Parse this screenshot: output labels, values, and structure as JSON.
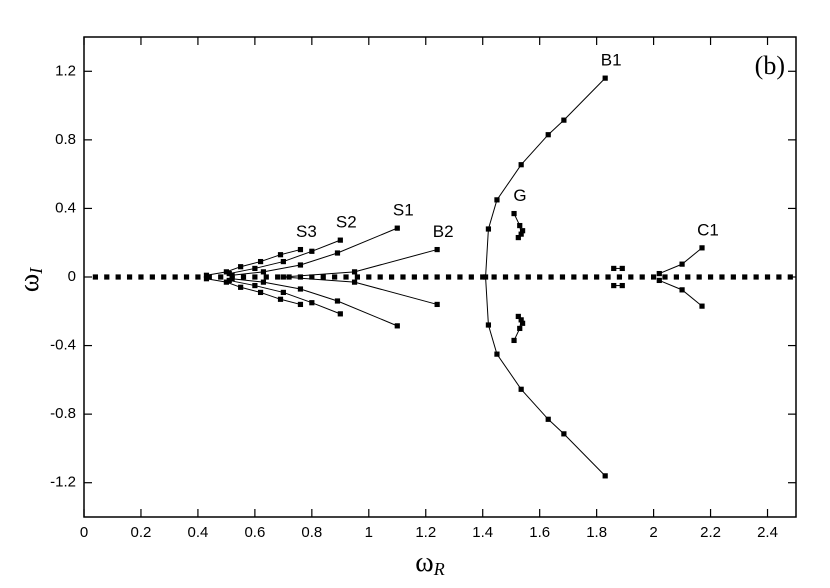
{
  "chart_data": {
    "type": "scatter",
    "panel_label": "(b)",
    "x_label": {
      "symbol": "ω",
      "subscript": "R"
    },
    "y_label": {
      "symbol": "ω",
      "subscript": "I"
    },
    "xlim": [
      0,
      2.5
    ],
    "ylim": [
      -1.4,
      1.4
    ],
    "xticks": [
      0,
      0.2,
      0.4,
      0.6,
      0.8,
      1,
      1.2,
      1.4,
      1.6,
      1.8,
      2,
      2.2,
      2.4
    ],
    "yticks": [
      -1.2,
      -0.8,
      -0.4,
      0,
      0.4,
      0.8,
      1.2
    ],
    "color": "#000000",
    "series": [
      {
        "name": "B1",
        "x": [
          1.83,
          1.685,
          1.63,
          1.535,
          1.45,
          1.42,
          1.41,
          1.42,
          1.45,
          1.535,
          1.63,
          1.685,
          1.83
        ],
        "y": [
          1.16,
          0.915,
          0.83,
          0.655,
          0.45,
          0.28,
          0,
          -0.28,
          -0.45,
          -0.655,
          -0.83,
          -0.915,
          -1.16
        ]
      },
      {
        "name": "B2",
        "x": [
          1.24,
          0.95,
          0.7,
          0.95,
          1.24
        ],
        "y": [
          0.16,
          0.03,
          0,
          -0.03,
          -0.16
        ]
      },
      {
        "name": "S1",
        "x": [
          1.1,
          0.89,
          0.76,
          0.63,
          0.52,
          null,
          0.52,
          0.63,
          0.76,
          0.89,
          1.1
        ],
        "y": [
          0.285,
          0.14,
          0.07,
          0.03,
          0.01,
          null,
          -0.01,
          -0.03,
          -0.07,
          -0.14,
          -0.285
        ]
      },
      {
        "name": "S2",
        "x": [
          0.9,
          0.8,
          0.7,
          0.6,
          0.51,
          null,
          0.51,
          0.6,
          0.7,
          0.8,
          0.9
        ],
        "y": [
          0.215,
          0.15,
          0.09,
          0.05,
          0.02,
          null,
          -0.02,
          -0.05,
          -0.09,
          -0.15,
          -0.215
        ]
      },
      {
        "name": "S3",
        "x": [
          0.76,
          0.69,
          0.62,
          0.55,
          0.5,
          0.43,
          null,
          0.43,
          0.5,
          0.55,
          0.62,
          0.69,
          0.76
        ],
        "y": [
          0.16,
          0.13,
          0.09,
          0.06,
          0.03,
          0.01,
          null,
          -0.01,
          -0.03,
          -0.06,
          -0.09,
          -0.13,
          -0.16
        ]
      },
      {
        "name": "G",
        "x": [
          1.51,
          1.53,
          1.535,
          1.525,
          1.54,
          null,
          1.54,
          1.525,
          1.535,
          1.53,
          1.51
        ],
        "y": [
          0.37,
          0.3,
          0.25,
          0.23,
          0.27,
          null,
          -0.27,
          -0.23,
          -0.25,
          -0.3,
          -0.37
        ]
      },
      {
        "name": "C1",
        "x": [
          2.17,
          2.1,
          2.02,
          null,
          2.02,
          2.1,
          2.17
        ],
        "y": [
          0.17,
          0.075,
          0.02,
          null,
          -0.02,
          -0.075,
          -0.17
        ]
      },
      {
        "x": [
          1.86,
          1.89,
          null,
          1.86,
          1.89
        ],
        "y": [
          0.05,
          0.05,
          null,
          -0.05,
          -0.05
        ]
      },
      {
        "markers_only": true,
        "x": [
          0.04,
          0.08,
          0.12,
          0.16,
          0.2,
          0.24,
          0.28,
          0.32,
          0.36,
          0.4,
          0.44,
          0.48,
          0.52,
          0.56,
          0.6,
          0.64,
          0.68,
          0.72,
          0.76,
          0.8,
          0.84,
          0.88,
          0.92,
          0.96,
          1.0,
          1.04,
          1.08,
          1.12,
          1.16,
          1.2,
          1.24,
          1.28,
          1.32,
          1.36,
          1.4,
          1.44,
          1.48,
          1.52,
          1.56,
          1.6,
          1.64,
          1.68,
          1.72,
          1.76,
          1.8,
          1.84,
          1.88,
          1.92,
          1.96,
          2.0,
          2.04,
          2.08,
          2.12,
          2.16,
          2.2,
          2.24,
          2.28,
          2.32,
          2.36,
          2.4,
          2.44,
          2.48
        ],
        "y": [
          0,
          0,
          0,
          0,
          0,
          0,
          0,
          0,
          0,
          0,
          0,
          0,
          0,
          0,
          0,
          0,
          0,
          0,
          0,
          0,
          0,
          0,
          0,
          0,
          0,
          0,
          0,
          0,
          0,
          0,
          0,
          0,
          0,
          0,
          0,
          0,
          0,
          0,
          0,
          0,
          0,
          0,
          0,
          0,
          0,
          0,
          0,
          0,
          0,
          0,
          0,
          0,
          0,
          0,
          0,
          0,
          0,
          0,
          0,
          0,
          0,
          0
        ]
      }
    ]
  }
}
